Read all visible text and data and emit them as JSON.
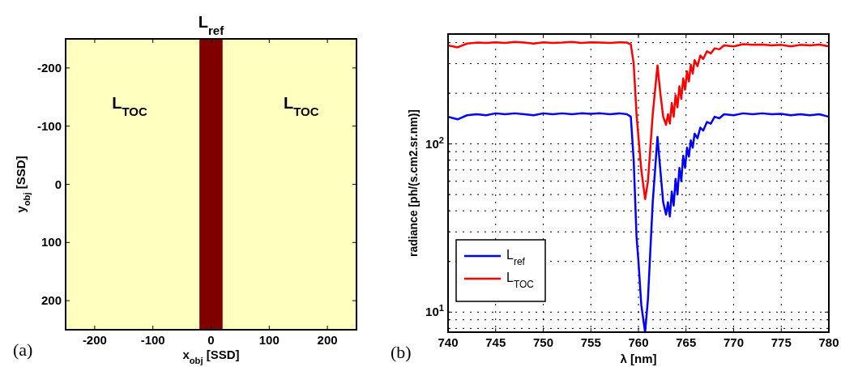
{
  "chart_data": [
    {
      "type": "scatter",
      "title": "L$_{ref}$",
      "xlabel": "x$_{obj}$ [SSD]",
      "ylabel": "y$_{obj}$ [SSD]",
      "xlim": [
        -250,
        250
      ],
      "ylim": [
        250,
        -250
      ],
      "xticks": [
        -200,
        -100,
        0,
        100,
        200
      ],
      "yticks": [
        200,
        100,
        0,
        -100,
        -200
      ],
      "bands": [
        {
          "axis": "x",
          "from": -250,
          "to": -20,
          "color": "#ffffc0"
        },
        {
          "axis": "x",
          "from": -20,
          "to": 20,
          "color": "#800000"
        },
        {
          "axis": "x",
          "from": 20,
          "to": 250,
          "color": "#ffffc0"
        }
      ],
      "annotations": [
        "L$_{TOC}$",
        "L$_{TOC}$",
        "(a)"
      ]
    },
    {
      "type": "line",
      "xlabel": "λ [nm]",
      "ylabel": "radiance [ph/(s.cm2.sr.nm)]",
      "log": "y",
      "grid": true,
      "legend": "bottom left",
      "xlim": [
        740,
        780
      ],
      "xticks": [
        740,
        745,
        750,
        755,
        760,
        765,
        770,
        775,
        780
      ],
      "ylim": [
        7.6,
        450
      ],
      "yticks": [
        {
          "value": 8,
          "label": null
        },
        {
          "value": 9,
          "label": null
        },
        {
          "value": 10,
          "label": "10$^{1}$"
        },
        {
          "value": 20,
          "label": null
        },
        {
          "value": 30,
          "label": null
        },
        {
          "value": 40,
          "label": null
        },
        {
          "value": 50,
          "label": null
        },
        {
          "value": 60,
          "label": null
        },
        {
          "value": 70,
          "label": null
        },
        {
          "value": 80,
          "label": null
        },
        {
          "value": 90,
          "label": null
        },
        {
          "value": 100,
          "label": "10$^{2}$"
        },
        {
          "value": 200,
          "label": null
        },
        {
          "value": 300,
          "label": null
        },
        {
          "value": 400,
          "label": null
        }
      ],
      "x": [
        740,
        741,
        742,
        743,
        744,
        745,
        746,
        747,
        748,
        749,
        750,
        751,
        752,
        753,
        754,
        755,
        756,
        757,
        758,
        758.8,
        759.2,
        759.5,
        759.8,
        760.0,
        760.3,
        760.7,
        761.0,
        761.5,
        762.0,
        762.3,
        762.6,
        762.9,
        763.1,
        763.3,
        763.5,
        763.7,
        763.9,
        764.1,
        764.3,
        764.5,
        764.7,
        764.9,
        765.1,
        765.3,
        765.5,
        765.7,
        765.9,
        766.2,
        766.5,
        766.8,
        767.2,
        767.6,
        768,
        768.5,
        769,
        770,
        771,
        772,
        773,
        774,
        775,
        776,
        777,
        778,
        779,
        780
      ],
      "series": [
        {
          "name": "L$_{ref}$",
          "color": "#0000ff",
          "values": [
            145,
            140,
            148,
            150,
            148,
            152,
            150,
            152,
            150,
            148,
            152,
            150,
            152,
            150,
            152,
            151,
            152,
            150,
            152,
            150,
            145,
            80,
            28,
            20,
            11,
            7.6,
            12,
            45,
            110,
            70,
            45,
            38,
            45,
            37,
            52,
            43,
            62,
            50,
            72,
            60,
            85,
            72,
            95,
            84,
            105,
            95,
            115,
            108,
            125,
            120,
            135,
            132,
            145,
            142,
            150,
            148,
            152,
            150,
            152,
            150,
            151,
            148,
            150,
            148,
            150,
            145
          ]
        },
        {
          "name": "L$_{TOC}$",
          "color": "#ff0000",
          "values": [
            385,
            375,
            395,
            400,
            398,
            402,
            398,
            404,
            400,
            395,
            402,
            398,
            400,
            404,
            398,
            402,
            400,
            398,
            402,
            400,
            390,
            300,
            150,
            110,
            70,
            47,
            60,
            150,
            293,
            200,
            145,
            130,
            150,
            132,
            175,
            145,
            195,
            165,
            220,
            185,
            245,
            210,
            270,
            235,
            295,
            262,
            315,
            290,
            335,
            320,
            355,
            345,
            370,
            365,
            385,
            380,
            392,
            388,
            390,
            385,
            388,
            380,
            388,
            385,
            390,
            380
          ]
        }
      ],
      "annotations": [
        "(b)"
      ]
    }
  ]
}
